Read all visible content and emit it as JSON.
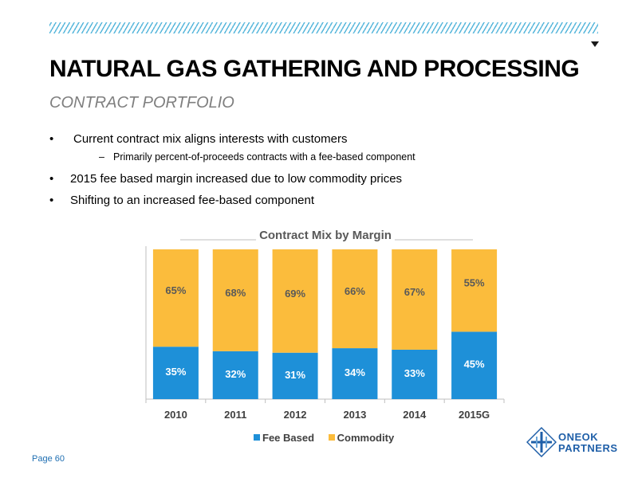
{
  "header": {
    "title": "NATURAL GAS GATHERING AND PROCESSING",
    "subtitle": "CONTRACT PORTFOLIO"
  },
  "bullets": [
    {
      "text": "Current contract mix aligns interests with customers",
      "sub": "Primarily percent-of-proceeds contracts with a fee-based component"
    },
    {
      "text": "2015 fee based margin increased due to low commodity prices"
    },
    {
      "text": "Shifting to an increased fee-based component"
    }
  ],
  "chart_data": {
    "type": "bar",
    "stacked": true,
    "title": "Contract Mix by Margin",
    "categories": [
      "2010",
      "2011",
      "2012",
      "2013",
      "2014",
      "2015G"
    ],
    "series": [
      {
        "name": "Fee Based",
        "values": [
          35,
          32,
          31,
          34,
          33,
          45
        ],
        "labels": [
          "35%",
          "32%",
          "31%",
          "34%",
          "33%",
          "45%"
        ],
        "color": "#1e90d8"
      },
      {
        "name": "Commodity",
        "values": [
          65,
          68,
          69,
          66,
          67,
          55
        ],
        "labels": [
          "65%",
          "68%",
          "69%",
          "66%",
          "67%",
          "55%"
        ],
        "color": "#fbbc3c"
      }
    ],
    "ylim": [
      0,
      100
    ],
    "grid": false,
    "legend": "bottom"
  },
  "footer": {
    "page": "Page 60",
    "logo_line1": "ONEOK",
    "logo_line2": "PARTNERS"
  }
}
